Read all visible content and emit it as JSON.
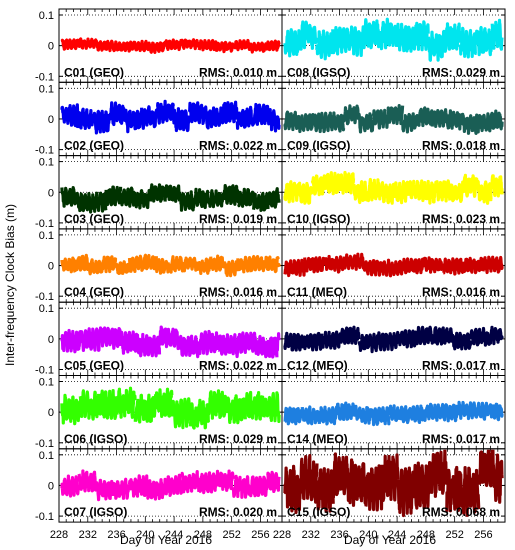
{
  "figure": {
    "ylabel": "Inter-frequency Clock Bias (m)",
    "xlabel_left": "Day of Year 2016",
    "xlabel_right": "Day of Year 2016"
  },
  "chart_data": {
    "type": "line",
    "x_range": [
      228,
      259
    ],
    "xticks": [
      228,
      232,
      236,
      240,
      244,
      248,
      252,
      256
    ],
    "ylim": [
      -0.1,
      0.1
    ],
    "yticks": [
      -0.1,
      0,
      0.1
    ],
    "ytick_labels": [
      "-0.1",
      "0",
      "0.1"
    ],
    "grid": "dotted horizontal lines at -0.1, 0, 0.1",
    "xlabel": "Day of Year 2016",
    "ylabel": "Inter-frequency Clock Bias (m)",
    "panels": [
      {
        "column": 0,
        "row": 0,
        "satellite": "C01 (GEO)",
        "rms": "RMS: 0.010 m",
        "rms_value": 0.01,
        "color": "#ff0000",
        "mean": 0.0,
        "amplitude": 0.028,
        "seed": 1
      },
      {
        "column": 0,
        "row": 1,
        "satellite": "C02 (GEO)",
        "rms": "RMS: 0.022 m",
        "rms_value": 0.022,
        "color": "#0000ee",
        "mean": 0.005,
        "amplitude": 0.065,
        "seed": 2
      },
      {
        "column": 0,
        "row": 2,
        "satellite": "C03 (GEO)",
        "rms": "RMS: 0.019 m",
        "rms_value": 0.019,
        "color": "#003300",
        "mean": -0.02,
        "amplitude": 0.055,
        "seed": 3
      },
      {
        "column": 0,
        "row": 3,
        "satellite": "C04 (GEO)",
        "rms": "RMS: 0.016 m",
        "rms_value": 0.016,
        "color": "#ff8000",
        "mean": 0.0,
        "amplitude": 0.045,
        "seed": 4
      },
      {
        "column": 0,
        "row": 4,
        "satellite": "C05 (GEO)",
        "rms": "RMS: 0.022 m",
        "rms_value": 0.022,
        "color": "#cc00ff",
        "mean": -0.01,
        "amplitude": 0.065,
        "seed": 5
      },
      {
        "column": 0,
        "row": 5,
        "satellite": "C06 (IGSO)",
        "rms": "RMS: 0.029 m",
        "rms_value": 0.029,
        "color": "#33ff00",
        "mean": 0.01,
        "amplitude": 0.085,
        "seed": 6
      },
      {
        "column": 0,
        "row": 6,
        "satellite": "C07 (IGSO)",
        "rms": "RMS: 0.020 m",
        "rms_value": 0.02,
        "color": "#ff00cc",
        "mean": 0.0,
        "amplitude": 0.06,
        "seed": 7
      },
      {
        "column": 1,
        "row": 0,
        "satellite": "C08 (IGSO)",
        "rms": "RMS: 0.029 m",
        "rms_value": 0.029,
        "color": "#00e5ee",
        "mean": 0.015,
        "amplitude": 0.085,
        "seed": 8
      },
      {
        "column": 1,
        "row": 1,
        "satellite": "C09 (IGSO)",
        "rms": "RMS: 0.018 m",
        "rms_value": 0.018,
        "color": "#1a5e55",
        "mean": 0.0,
        "amplitude": 0.055,
        "seed": 9
      },
      {
        "column": 1,
        "row": 2,
        "satellite": "C10 (IGSO)",
        "rms": "RMS: 0.023 m",
        "rms_value": 0.023,
        "color": "#ffff00",
        "mean": 0.01,
        "amplitude": 0.065,
        "seed": 10
      },
      {
        "column": 1,
        "row": 3,
        "satellite": "C11 (MEO)",
        "rms": "RMS: 0.016 m",
        "rms_value": 0.016,
        "color": "#cc0000",
        "mean": 0.0,
        "amplitude": 0.045,
        "seed": 11
      },
      {
        "column": 1,
        "row": 4,
        "satellite": "C12 (MEO)",
        "rms": "RMS: 0.017 m",
        "rms_value": 0.017,
        "color": "#000044",
        "mean": 0.0,
        "amplitude": 0.05,
        "seed": 12
      },
      {
        "column": 1,
        "row": 5,
        "satellite": "C14 (MEO)",
        "rms": "RMS: 0.017 m",
        "rms_value": 0.017,
        "color": "#1e7fe0",
        "mean": 0.0,
        "amplitude": 0.05,
        "seed": 13
      },
      {
        "column": 1,
        "row": 6,
        "satellite": "C15 (IGSO)",
        "rms": "RMS: 0.068 m",
        "rms_value": 0.068,
        "color": "#800000",
        "mean": 0.02,
        "amplitude": 0.14,
        "seed": 14
      }
    ]
  }
}
